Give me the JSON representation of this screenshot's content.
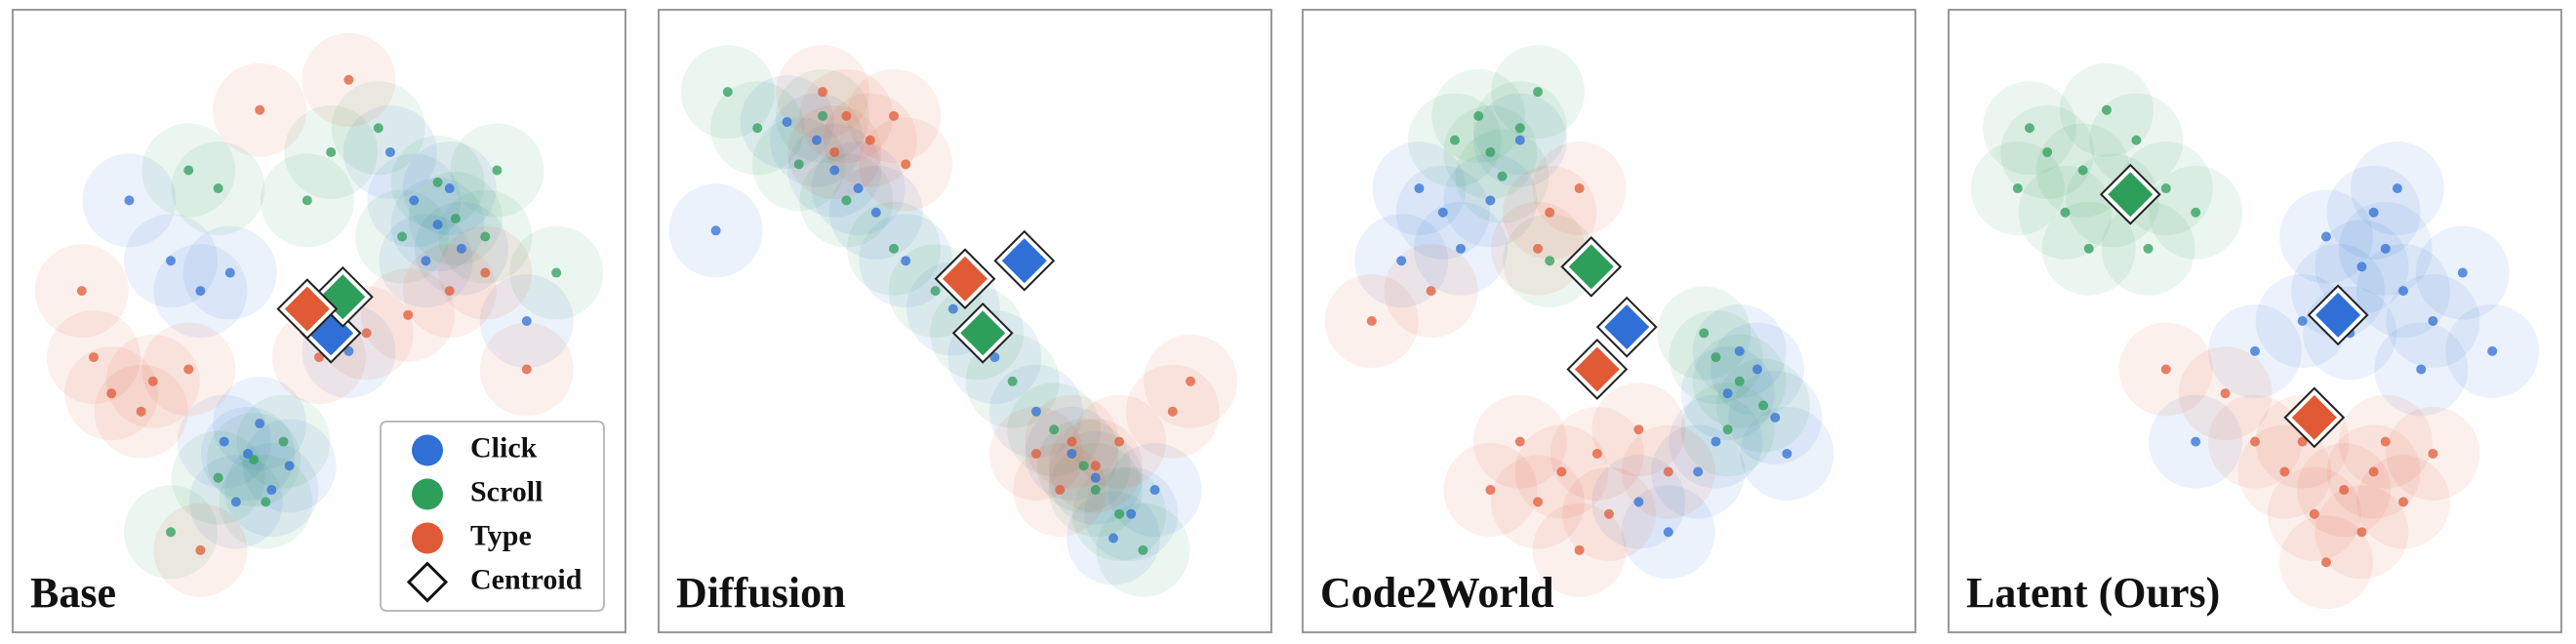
{
  "chart_data": [
    {
      "type": "scatter",
      "title": "Base",
      "legend": "lower right",
      "centroid_label": "Centroid",
      "series": [
        {
          "name": "Click",
          "color": "#2f6fd6",
          "x": [
            38,
            42,
            34,
            40,
            45,
            36,
            70,
            66,
            74,
            68,
            72,
            30,
            35,
            25,
            55,
            62,
            18,
            85
          ],
          "y": [
            28,
            22,
            30,
            33,
            26,
            20,
            66,
            70,
            62,
            60,
            72,
            55,
            58,
            60,
            45,
            78,
            70,
            50
          ],
          "centroid": [
            52,
            48
          ]
        },
        {
          "name": "Scroll",
          "color": "#2e9e5b",
          "x": [
            39,
            33,
            44,
            41,
            73,
            78,
            70,
            64,
            33,
            28,
            52,
            60,
            48,
            80,
            90,
            25
          ],
          "y": [
            27,
            24,
            30,
            20,
            67,
            64,
            73,
            64,
            72,
            75,
            78,
            82,
            70,
            75,
            58,
            15
          ],
          "centroid": [
            54,
            54
          ]
        },
        {
          "name": "Type",
          "color": "#e05a35",
          "x": [
            22,
            15,
            28,
            20,
            12,
            65,
            58,
            72,
            50,
            78,
            40,
            55,
            10,
            85,
            30
          ],
          "y": [
            40,
            38,
            42,
            35,
            44,
            51,
            48,
            55,
            44,
            58,
            85,
            90,
            55,
            42,
            12
          ],
          "centroid": [
            48,
            52
          ]
        }
      ]
    },
    {
      "type": "scatter",
      "title": "Diffusion",
      "series": [
        {
          "name": "Click",
          "color": "#2f6fd6",
          "x": [
            25,
            28,
            32,
            20,
            35,
            40,
            48,
            55,
            62,
            68,
            72,
            78,
            82,
            75,
            8
          ],
          "y": [
            80,
            75,
            72,
            83,
            68,
            60,
            52,
            44,
            35,
            28,
            24,
            18,
            22,
            14,
            65
          ],
          "centroid": [
            60,
            60
          ]
        },
        {
          "name": "Scroll",
          "color": "#2e9e5b",
          "x": [
            10,
            15,
            22,
            30,
            38,
            45,
            52,
            58,
            65,
            72,
            76,
            80,
            70,
            26
          ],
          "y": [
            88,
            82,
            76,
            70,
            62,
            55,
            48,
            40,
            32,
            22,
            18,
            12,
            26,
            84
          ],
          "centroid": [
            53,
            48
          ]
        },
        {
          "name": "Type",
          "color": "#e05a35",
          "x": [
            26,
            30,
            34,
            28,
            38,
            40,
            68,
            72,
            66,
            76,
            85,
            88,
            62
          ],
          "y": [
            88,
            84,
            80,
            78,
            84,
            76,
            30,
            26,
            22,
            30,
            35,
            40,
            28
          ],
          "centroid": [
            50,
            57
          ]
        }
      ]
    },
    {
      "type": "scatter",
      "title": "Code2World",
      "series": [
        {
          "name": "Click",
          "color": "#2f6fd6",
          "x": [
            22,
            18,
            25,
            15,
            30,
            70,
            75,
            68,
            78,
            65,
            72,
            80,
            55,
            60,
            35
          ],
          "y": [
            68,
            72,
            62,
            60,
            70,
            38,
            42,
            30,
            34,
            25,
            45,
            28,
            20,
            15,
            80
          ],
          "centroid": [
            53,
            49
          ]
        },
        {
          "name": "Scroll",
          "color": "#2e9e5b",
          "x": [
            30,
            28,
            35,
            24,
            32,
            38,
            72,
            68,
            76,
            70,
            66,
            40
          ],
          "y": [
            78,
            84,
            82,
            80,
            74,
            88,
            40,
            44,
            36,
            32,
            48,
            60
          ],
          "centroid": [
            47,
            59
          ]
        },
        {
          "name": "Type",
          "color": "#e05a35",
          "x": [
            40,
            45,
            38,
            20,
            42,
            38,
            48,
            35,
            50,
            45,
            30,
            55,
            60,
            10
          ],
          "y": [
            68,
            72,
            62,
            55,
            25,
            20,
            28,
            30,
            18,
            12,
            22,
            32,
            25,
            50
          ],
          "centroid": [
            48,
            42
          ]
        }
      ]
    },
    {
      "type": "scatter",
      "title": "Latent (Ours)",
      "series": [
        {
          "name": "Click",
          "color": "#2f6fd6",
          "x": [
            68,
            72,
            64,
            75,
            70,
            62,
            80,
            58,
            85,
            66,
            50,
            40,
            78,
            90,
            74
          ],
          "y": [
            59,
            62,
            55,
            55,
            68,
            64,
            50,
            50,
            58,
            48,
            45,
            30,
            42,
            45,
            72
          ],
          "centroid": [
            64,
            51
          ]
        },
        {
          "name": "Scroll",
          "color": "#2e9e5b",
          "x": [
            21,
            15,
            26,
            18,
            30,
            12,
            35,
            25,
            10,
            40,
            32,
            22
          ],
          "y": [
            75,
            78,
            70,
            68,
            80,
            82,
            72,
            85,
            72,
            68,
            62,
            62
          ],
          "centroid": [
            29,
            71
          ]
        },
        {
          "name": "Type",
          "color": "#e05a35",
          "x": [
            65,
            60,
            70,
            55,
            68,
            75,
            58,
            50,
            62,
            72,
            35,
            45,
            80
          ],
          "y": [
            22,
            18,
            25,
            25,
            15,
            20,
            30,
            30,
            10,
            30,
            42,
            38,
            28
          ],
          "centroid": [
            60,
            34
          ]
        }
      ]
    }
  ]
}
